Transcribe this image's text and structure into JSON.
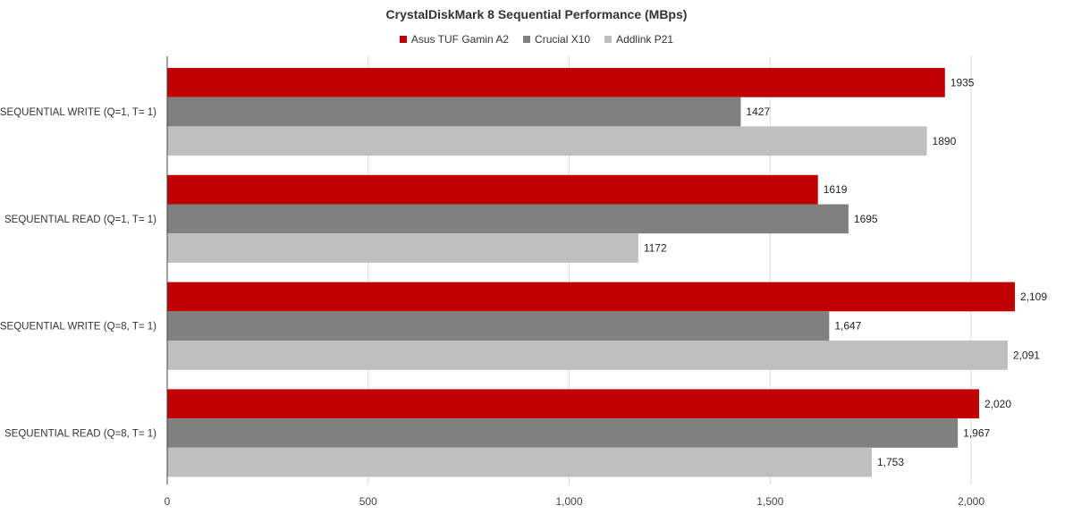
{
  "chart_data": {
    "type": "bar",
    "orientation": "horizontal",
    "title": "CrystalDiskMark 8 Sequential Performance (MBps)",
    "xlabel": "",
    "ylabel": "",
    "xlim": [
      0,
      2000
    ],
    "x_ticks": [
      0,
      500,
      1000,
      1500,
      2000
    ],
    "x_tick_labels": [
      "0",
      "500",
      "1,000",
      "1,500",
      "2,000"
    ],
    "grid": true,
    "legend_position": "top-center",
    "categories": [
      "SEQUENTIAL WRITE (Q=1, T= 1)",
      "SEQUENTIAL READ (Q=1, T= 1)",
      "SEQUENTIAL WRITE (Q=8, T= 1)",
      "SEQUENTIAL READ (Q=8, T= 1)"
    ],
    "series": [
      {
        "name": "Asus TUF Gamin A2",
        "color": "#c00000",
        "values": [
          1935,
          1619,
          2109,
          2020
        ],
        "labels": [
          "1935",
          "1619",
          "2,109",
          "2,020"
        ]
      },
      {
        "name": "Crucial X10",
        "color": "#808080",
        "values": [
          1427,
          1695,
          1647,
          1967
        ],
        "labels": [
          "1427",
          "1695",
          "1,647",
          "1,967"
        ]
      },
      {
        "name": "Addlink P21",
        "color": "#bfbfbf",
        "values": [
          1890,
          1172,
          2091,
          1753
        ],
        "labels": [
          "1890",
          "1172",
          "2,091",
          "1,753"
        ]
      }
    ]
  }
}
